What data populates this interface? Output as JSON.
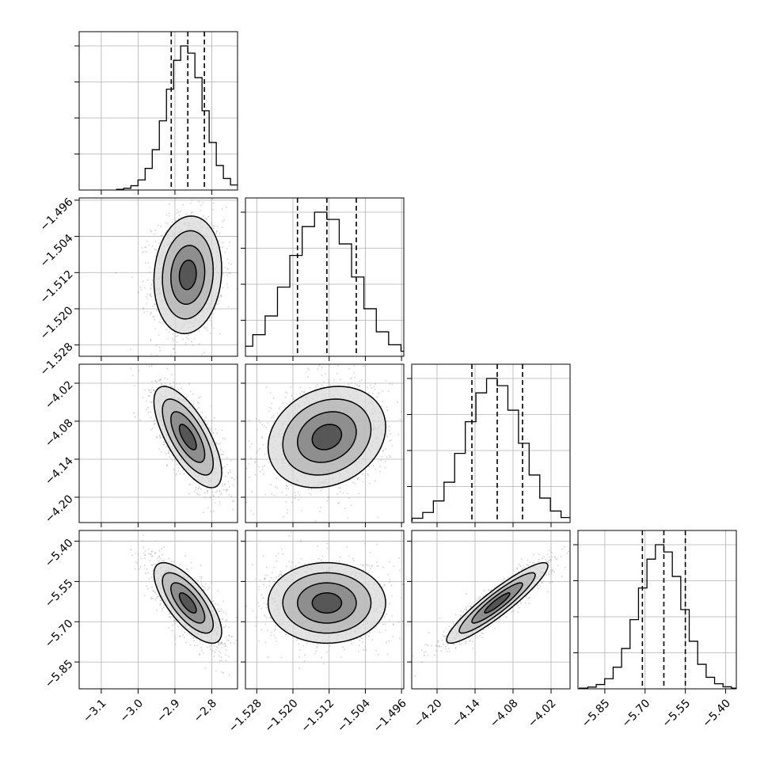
{
  "chart_data": {
    "type": "corner",
    "grid": true,
    "colors": {
      "hist": "#000000",
      "contour": "#000000",
      "points": "#9a9a9a",
      "grid": "#b0b0b0",
      "quantile": "#000000"
    },
    "params": [
      {
        "mean": -2.865,
        "sigma": 0.046,
        "quantiles": [
          -2.91,
          -2.865,
          -2.82
        ],
        "range": [
          -3.16,
          -2.73
        ],
        "ticks": [
          -3.1,
          -3.0,
          -2.9,
          -2.8
        ],
        "tick_labels": [
          "−3.1",
          "−3.0",
          "−2.9",
          "−2.8"
        ]
      },
      {
        "mean": -1.5125,
        "sigma": 0.0065,
        "quantiles": [
          -1.519,
          -1.5125,
          -1.506
        ],
        "range": [
          -1.5305,
          -1.4955
        ],
        "ticks": [
          -1.528,
          -1.52,
          -1.512,
          -1.504,
          -1.496
        ],
        "tick_labels": [
          "−1.528",
          "−1.520",
          "−1.512",
          "−1.504",
          "−1.496"
        ]
      },
      {
        "mean": -4.105,
        "sigma": 0.04,
        "quantiles": [
          -4.145,
          -4.105,
          -4.065
        ],
        "range": [
          -4.24,
          -3.99
        ],
        "ticks": [
          -4.2,
          -4.14,
          -4.08,
          -4.02
        ],
        "tick_labels": [
          "−4.20",
          "−4.14",
          "−4.08",
          "−4.02"
        ]
      },
      {
        "mean": -5.63,
        "sigma": 0.075,
        "quantiles": [
          -5.71,
          -5.63,
          -5.55
        ],
        "range": [
          -5.95,
          -5.36
        ],
        "ticks": [
          -5.85,
          -5.7,
          -5.55,
          -5.4
        ],
        "tick_labels": [
          "−5.85",
          "−5.70",
          "−5.55",
          "−5.40"
        ]
      }
    ],
    "correlations": [
      [
        1.0,
        0.1,
        -0.7,
        -0.72
      ],
      [
        0.1,
        1.0,
        0.2,
        0.0
      ],
      [
        -0.7,
        0.2,
        1.0,
        0.92
      ],
      [
        -0.72,
        0.0,
        0.92,
        1.0
      ]
    ],
    "histogram": {
      "bins": 20,
      "counts": [
        0.005,
        0.012,
        0.03,
        0.07,
        0.15,
        0.28,
        0.48,
        0.7,
        0.9,
        1.0,
        0.95,
        0.78,
        0.55,
        0.33,
        0.17,
        0.08,
        0.035,
        0.014,
        0.005,
        0.002
      ]
    },
    "contour_levels_sigma": [
      0.5,
      1.0,
      1.5,
      2.0
    ]
  }
}
